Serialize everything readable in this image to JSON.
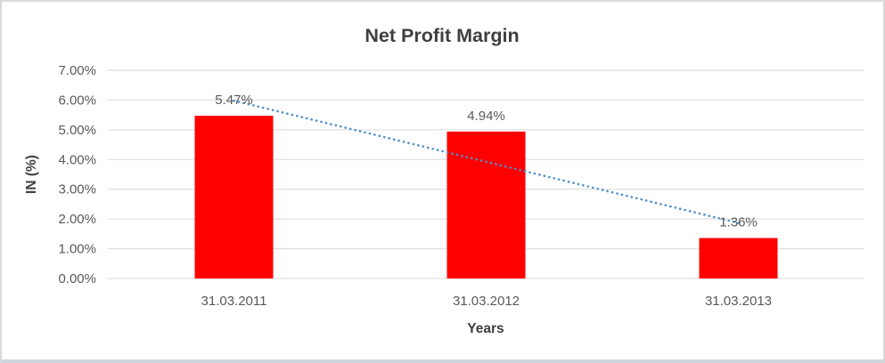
{
  "chart_data": {
    "type": "bar",
    "title": "Net Profit Margin",
    "xlabel": "Years",
    "ylabel": "IN (%)",
    "categories": [
      "31.03.2011",
      "31.03.2012",
      "31.03.2013"
    ],
    "values": [
      5.47,
      4.94,
      1.36
    ],
    "data_labels": [
      "5.47%",
      "4.94%",
      "1.36%"
    ],
    "ylim": [
      0,
      7
    ],
    "ytick_labels": [
      "0.00%",
      "1.00%",
      "2.00%",
      "3.00%",
      "4.00%",
      "5.00%",
      "6.00%",
      "7.00%"
    ],
    "grid": true,
    "legend": false,
    "bar_color": "#ff0000",
    "gridline_color": "#d9d9d9",
    "trendline": {
      "type": "linear",
      "style": "dotted",
      "color": "#4e8fcc"
    }
  }
}
